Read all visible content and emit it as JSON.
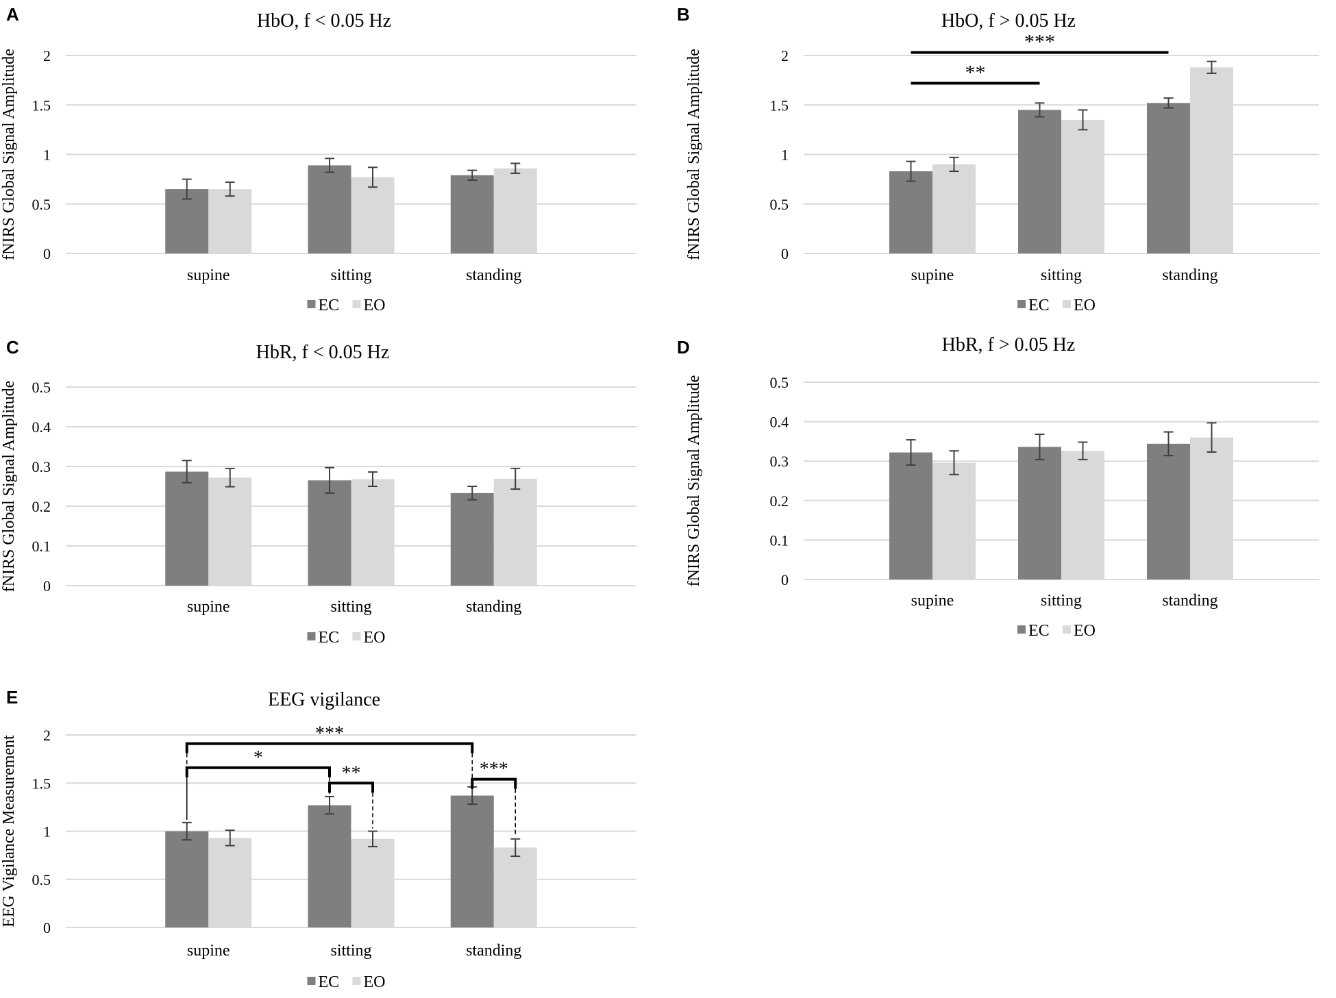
{
  "legend": {
    "ec_label": "EC",
    "eo_label": "EO"
  },
  "colors": {
    "ec": "#7f7f7f",
    "eo": "#d9d9d9",
    "grid": "#d9d9d9",
    "errorbar": "#404040",
    "sig": "#000000"
  },
  "chart_data": [
    {
      "panel": "A",
      "type": "bar",
      "title": "HbO, f < 0.05 Hz",
      "ylabel": "fNIRS Global Signal Amplitude",
      "xlabel": "",
      "categories": [
        "supine",
        "sitting",
        "standing"
      ],
      "ylim": [
        0,
        2
      ],
      "yticks": [
        0,
        0.5,
        1,
        1.5,
        2
      ],
      "ytick_labels": [
        "0",
        "0.5",
        "1",
        "1.5",
        "2"
      ],
      "legend_position": "bottom",
      "series": [
        {
          "name": "EC",
          "values": [
            0.65,
            0.89,
            0.79
          ],
          "errors": [
            0.1,
            0.07,
            0.05
          ]
        },
        {
          "name": "EO",
          "values": [
            0.65,
            0.77,
            0.86
          ],
          "errors": [
            0.07,
            0.1,
            0.05
          ]
        }
      ],
      "significance": []
    },
    {
      "panel": "B",
      "type": "bar",
      "title": "HbO, f > 0.05 Hz",
      "ylabel": "fNIRS Global Signal Amplitude",
      "xlabel": "",
      "categories": [
        "supine",
        "sitting",
        "standing"
      ],
      "ylim": [
        0,
        2
      ],
      "yticks": [
        0,
        0.5,
        1,
        1.5,
        2
      ],
      "ytick_labels": [
        "0",
        "0.5",
        "1",
        "1.5",
        "2"
      ],
      "legend_position": "bottom",
      "series": [
        {
          "name": "EC",
          "values": [
            0.83,
            1.45,
            1.52
          ],
          "errors": [
            0.1,
            0.07,
            0.05
          ]
        },
        {
          "name": "EO",
          "values": [
            0.9,
            1.35,
            1.88
          ],
          "errors": [
            0.07,
            0.1,
            0.06
          ]
        }
      ],
      "significance": [
        {
          "from": 0,
          "to": 1,
          "label": "**",
          "level": 1.72,
          "style": "bar"
        },
        {
          "from": 0,
          "to": 2,
          "label": "***",
          "level": 2.03,
          "style": "bar"
        }
      ]
    },
    {
      "panel": "C",
      "type": "bar",
      "title": "HbR, f < 0.05 Hz",
      "ylabel": "fNIRS Global Signal Amplitude",
      "xlabel": "",
      "categories": [
        "supine",
        "sitting",
        "standing"
      ],
      "ylim": [
        0,
        0.5
      ],
      "yticks": [
        0,
        0.1,
        0.2,
        0.3,
        0.4,
        0.5
      ],
      "ytick_labels": [
        "0",
        "0.1",
        "0.2",
        "0.3",
        "0.4",
        "0.5"
      ],
      "legend_position": "bottom",
      "series": [
        {
          "name": "EC",
          "values": [
            0.287,
            0.265,
            0.233
          ],
          "errors": [
            0.028,
            0.032,
            0.017
          ]
        },
        {
          "name": "EO",
          "values": [
            0.272,
            0.268,
            0.269
          ],
          "errors": [
            0.023,
            0.018,
            0.026
          ]
        }
      ],
      "significance": []
    },
    {
      "panel": "D",
      "type": "bar",
      "title": "HbR, f > 0.05 Hz",
      "ylabel": "fNIRS Global Signal Amplitude",
      "xlabel": "",
      "categories": [
        "supine",
        "sitting",
        "standing"
      ],
      "ylim": [
        0,
        0.5
      ],
      "yticks": [
        0,
        0.1,
        0.2,
        0.3,
        0.4,
        0.5
      ],
      "ytick_labels": [
        "0",
        "0.1",
        "0.2",
        "0.3",
        "0.4",
        "0.5"
      ],
      "legend_position": "bottom",
      "series": [
        {
          "name": "EC",
          "values": [
            0.322,
            0.336,
            0.344
          ],
          "errors": [
            0.032,
            0.032,
            0.03
          ]
        },
        {
          "name": "EO",
          "values": [
            0.296,
            0.326,
            0.36
          ],
          "errors": [
            0.03,
            0.022,
            0.037
          ]
        }
      ],
      "significance": []
    },
    {
      "panel": "E",
      "type": "bar",
      "title": "EEG vigilance",
      "ylabel": "EEG Vigilance Measurement",
      "xlabel": "",
      "categories": [
        "supine",
        "sitting",
        "standing"
      ],
      "ylim": [
        0,
        2
      ],
      "yticks": [
        0,
        0.5,
        1,
        1.5,
        2
      ],
      "ytick_labels": [
        "0",
        "0.5",
        "1",
        "1.5",
        "2"
      ],
      "legend_position": "bottom",
      "series": [
        {
          "name": "EC",
          "values": [
            1.0,
            1.27,
            1.37
          ],
          "errors": [
            0.09,
            0.09,
            0.09
          ]
        },
        {
          "name": "EO",
          "values": [
            0.93,
            0.92,
            0.83
          ],
          "errors": [
            0.08,
            0.08,
            0.09
          ]
        }
      ],
      "significance": [
        {
          "from": 0,
          "to": 1,
          "label": "*",
          "level": 1.66,
          "style": "bracket"
        },
        {
          "from": 0,
          "to": 2,
          "label": "***",
          "level": 1.91,
          "style": "bracket"
        },
        {
          "from": 1,
          "fromSeries": 0,
          "to": 1,
          "toSeries": 1,
          "label": "**",
          "level": 1.5,
          "style": "bracket"
        },
        {
          "from": 2,
          "fromSeries": 0,
          "to": 2,
          "toSeries": 1,
          "label": "***",
          "level": 1.54,
          "style": "bracket"
        }
      ]
    }
  ]
}
